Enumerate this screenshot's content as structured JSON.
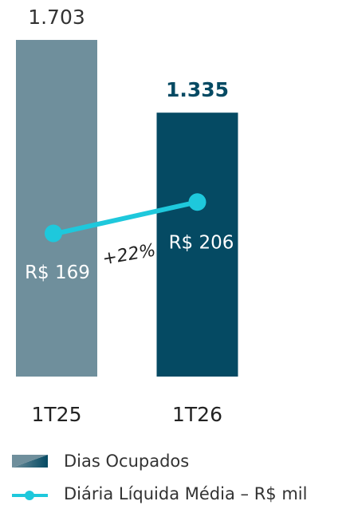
{
  "chart_data": {
    "type": "bar",
    "categories": [
      "1T25",
      "1T26"
    ],
    "ylim": [
      0,
      1800
    ],
    "y2lim": [
      0,
      420
    ],
    "series": [
      {
        "name": "Dias Ocupados",
        "type": "bar",
        "colors": [
          "#6f8f9c",
          "#054a63"
        ],
        "values": [
          1703,
          1335
        ],
        "value_labels": [
          "1.703",
          "1.335"
        ]
      },
      {
        "name": "Diária Líquida Média – R$ mil",
        "type": "line",
        "axis": "y2",
        "color": "#1ec8dc",
        "values": [
          169,
          206
        ],
        "value_labels": [
          "R$ 169",
          "R$ 206"
        ]
      }
    ],
    "annotations": [
      "+22%"
    ]
  }
}
